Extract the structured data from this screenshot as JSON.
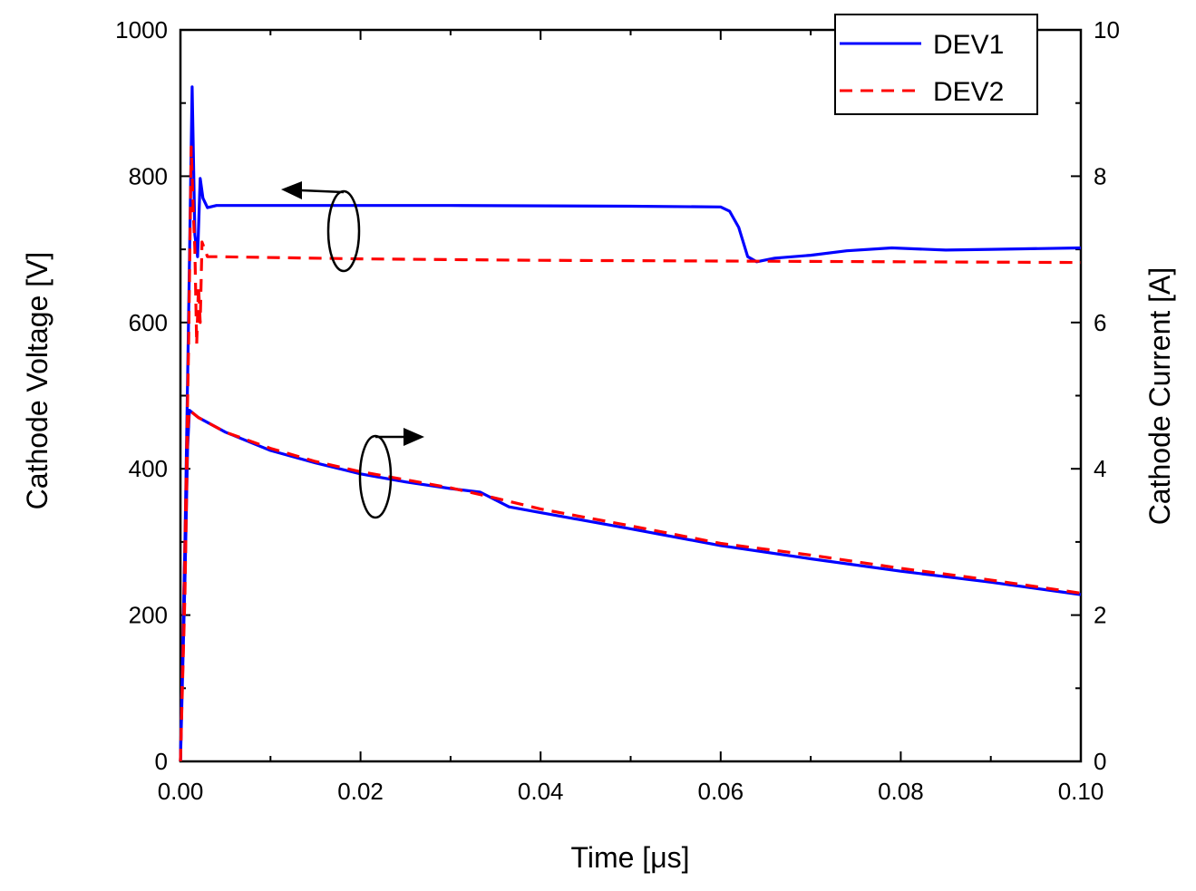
{
  "chart_data": {
    "type": "line",
    "title": "",
    "xlabel": "Time [μs]",
    "ylabel_left": "Cathode Voltage [V]",
    "ylabel_right": "Cathode Current [A]",
    "xlim": [
      0,
      0.1
    ],
    "ylim_left": [
      0,
      1000
    ],
    "ylim_right": [
      0,
      10
    ],
    "x_ticks": [
      "0.00",
      "0.02",
      "0.04",
      "0.06",
      "0.08",
      "0.10"
    ],
    "y_left_ticks": [
      "0",
      "200",
      "400",
      "600",
      "800",
      "1000"
    ],
    "y_right_ticks": [
      "0",
      "2",
      "4",
      "6",
      "8",
      "10"
    ],
    "grid": false,
    "legend_position": "top-right",
    "annotations": [
      {
        "kind": "ellipse-arrow",
        "points_to": "left axis (voltage curves)"
      },
      {
        "kind": "ellipse-arrow",
        "points_to": "right axis (current curves)"
      }
    ],
    "series": [
      {
        "name": "DEV1",
        "axis": "left",
        "quantity": "voltage",
        "color": "#0000ff",
        "style": "solid",
        "x": [
          0,
          0.0005,
          0.0009,
          0.0013,
          0.0016,
          0.0019,
          0.0022,
          0.0025,
          0.003,
          0.004,
          0.01,
          0.03,
          0.05,
          0.06,
          0.061,
          0.062,
          0.063,
          0.064,
          0.066,
          0.07,
          0.074,
          0.079,
          0.085,
          0.09,
          0.1
        ],
        "y": [
          0,
          300,
          600,
          922,
          720,
          690,
          797,
          770,
          757,
          760,
          760,
          760,
          759,
          758,
          752,
          730,
          690,
          683,
          688,
          692,
          698,
          702,
          699,
          700,
          702
        ]
      },
      {
        "name": "DEV2",
        "axis": "left",
        "quantity": "voltage",
        "color": "#ff0000",
        "style": "dashed",
        "x": [
          0,
          0.0005,
          0.0009,
          0.0012,
          0.0014,
          0.0016,
          0.0018,
          0.002,
          0.0022,
          0.0024,
          0.003,
          0.004,
          0.02,
          0.04,
          0.06,
          0.08,
          0.1
        ],
        "y": [
          0,
          300,
          560,
          840,
          760,
          700,
          570,
          650,
          600,
          710,
          690,
          690,
          687,
          685,
          684,
          683,
          682
        ]
      },
      {
        "name": "DEV1",
        "axis": "right",
        "quantity": "current",
        "color": "#0000ff",
        "style": "solid",
        "x": [
          0,
          0.0005,
          0.0008,
          0.001,
          0.002,
          0.005,
          0.01,
          0.015,
          0.02,
          0.025,
          0.03,
          0.0333,
          0.0365,
          0.04,
          0.05,
          0.06,
          0.07,
          0.08,
          0.09,
          0.1
        ],
        "y": [
          0,
          2.5,
          4.3,
          4.8,
          4.7,
          4.5,
          4.25,
          4.08,
          3.93,
          3.82,
          3.73,
          3.68,
          3.48,
          3.4,
          3.18,
          2.95,
          2.77,
          2.6,
          2.45,
          2.28
        ]
      },
      {
        "name": "DEV2",
        "axis": "right",
        "quantity": "current",
        "color": "#ff0000",
        "style": "dashed",
        "x": [
          0,
          0.0005,
          0.0008,
          0.001,
          0.002,
          0.005,
          0.01,
          0.015,
          0.02,
          0.025,
          0.03,
          0.035,
          0.04,
          0.05,
          0.06,
          0.07,
          0.08,
          0.09,
          0.1
        ],
        "y": [
          0,
          2.3,
          4.5,
          4.8,
          4.7,
          4.5,
          4.28,
          4.1,
          3.96,
          3.85,
          3.74,
          3.6,
          3.45,
          3.22,
          2.98,
          2.82,
          2.64,
          2.48,
          2.3
        ]
      }
    ],
    "legend": [
      {
        "label": "DEV1",
        "color": "#0000ff",
        "style": "solid"
      },
      {
        "label": "DEV2",
        "color": "#ff0000",
        "style": "dashed"
      }
    ]
  }
}
